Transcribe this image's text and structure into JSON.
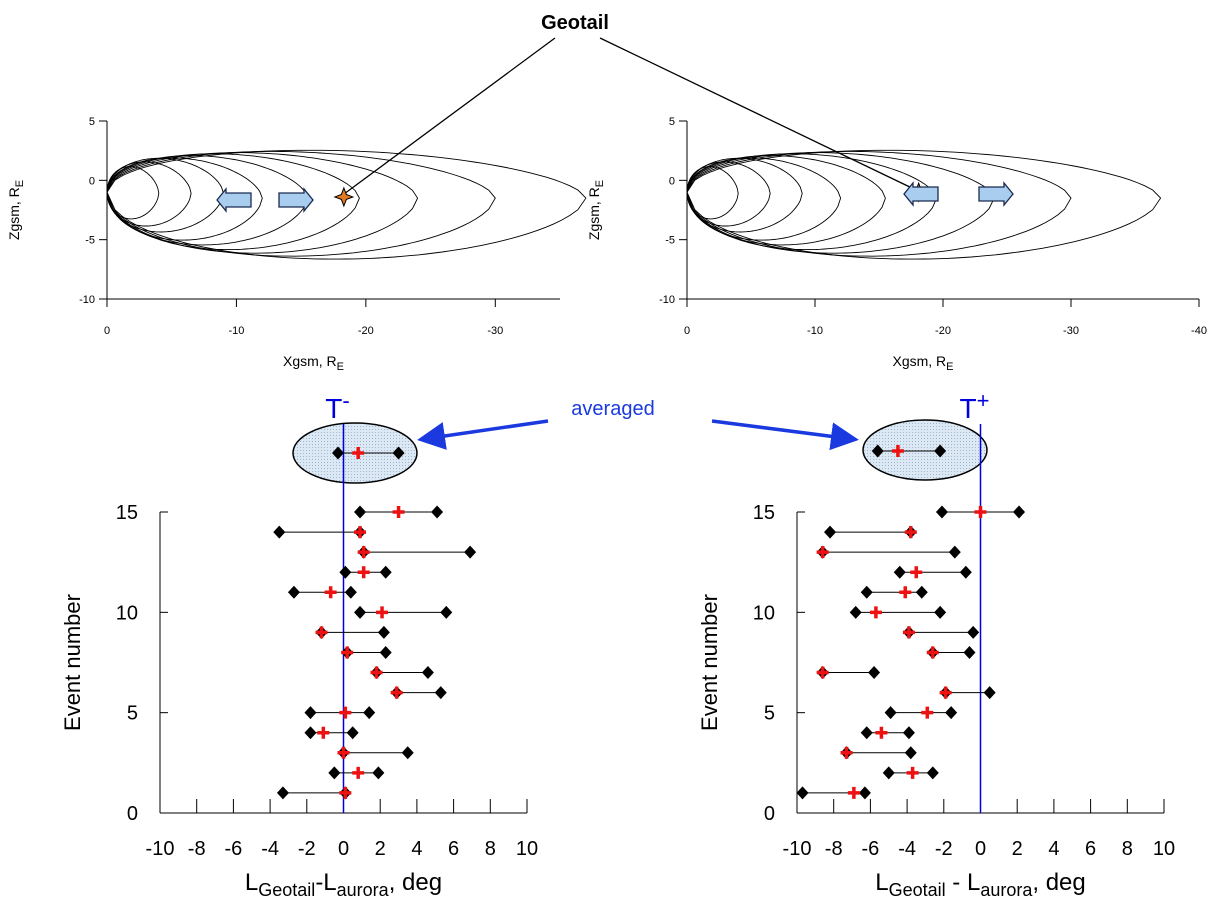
{
  "chart_data": [
    {
      "type": "field-lines",
      "annotation": "Geotail",
      "xlabel": "Xgsm, R",
      "xlabel_sub": "E",
      "ylabel": "Zgsm, R",
      "ylabel_sub": "E",
      "xlim": [
        0,
        -35
      ],
      "xticks": [
        0,
        -10,
        -20,
        -30
      ],
      "ylim": [
        -10,
        5
      ],
      "yticks": [
        -10,
        -5,
        0,
        5
      ],
      "spacecraft": {
        "x": -18.3,
        "z": -1.4
      }
    },
    {
      "type": "field-lines",
      "xlabel": "Xgsm, R",
      "xlabel_sub": "E",
      "ylabel": "Zgsm, R",
      "ylabel_sub": "E",
      "xlim": [
        0,
        -40
      ],
      "xticks": [
        0,
        -10,
        -20,
        -30,
        -40
      ],
      "ylim": [
        -10,
        5
      ],
      "yticks": [
        -10,
        -5,
        0,
        5
      ],
      "spacecraft": {
        "x": -18.1,
        "z": -1.0
      }
    },
    {
      "type": "range",
      "marker_label": "T",
      "marker_sup": "-",
      "marker_x": 0,
      "averaged_label": "averaged",
      "ylabel": "Event number",
      "xlabel_parts": [
        {
          "text": "L"
        },
        {
          "text": "Geotail",
          "sub": true
        },
        {
          "text": "-L"
        },
        {
          "text": "aurora",
          "sub": true
        },
        {
          "text": ", deg"
        }
      ],
      "xlim": [
        -10,
        10
      ],
      "xticks": [
        -10,
        -8,
        -6,
        -4,
        -2,
        0,
        2,
        4,
        6,
        8,
        10
      ],
      "ylim": [
        0,
        15
      ],
      "yticks": [
        0,
        5,
        10,
        15
      ],
      "events": [
        1,
        2,
        3,
        4,
        5,
        6,
        7,
        8,
        9,
        10,
        11,
        12,
        13,
        14,
        15
      ],
      "low": [
        -3.3,
        -0.5,
        0,
        -1.8,
        -1.8,
        2.9,
        1.8,
        0.2,
        -1.2,
        0.9,
        -2.7,
        0.1,
        1.1,
        -3.5,
        0.9
      ],
      "high": [
        0.1,
        1.9,
        3.5,
        0.5,
        1.4,
        5.3,
        4.6,
        2.3,
        2.2,
        5.6,
        0.4,
        2.3,
        6.9,
        0.9,
        5.1
      ],
      "mean": [
        0.1,
        0.8,
        0,
        -1.1,
        0.1,
        2.9,
        1.8,
        0.2,
        -1.2,
        2.1,
        -0.7,
        1.1,
        1.1,
        0.9,
        3.0
      ],
      "averaged": {
        "low": -0.3,
        "high": 3.0,
        "mean": 0.8
      },
      "range_color": "#000000",
      "mean_color": "#ee1111",
      "marker_color": "#0000dd"
    },
    {
      "type": "range",
      "marker_label": "T",
      "marker_sup": "+",
      "marker_x": 0,
      "ylabel": "Event number",
      "xlabel_parts": [
        {
          "text": "L"
        },
        {
          "text": "Geotail",
          "sub": true
        },
        {
          "text": " - L"
        },
        {
          "text": "aurora",
          "sub": true
        },
        {
          "text": ", deg"
        }
      ],
      "xlim": [
        -10,
        10
      ],
      "xticks": [
        -10,
        -8,
        -6,
        -4,
        -2,
        0,
        2,
        4,
        6,
        8,
        10
      ],
      "ylim": [
        0,
        15
      ],
      "yticks": [
        0,
        5,
        10,
        15
      ],
      "events": [
        1,
        2,
        3,
        4,
        5,
        6,
        7,
        8,
        9,
        10,
        11,
        12,
        13,
        14,
        15
      ],
      "low": [
        -9.7,
        -5.0,
        -7.3,
        -6.2,
        -4.9,
        -1.9,
        -8.6,
        -2.6,
        -3.9,
        -6.8,
        -6.2,
        -4.4,
        -8.6,
        -8.2,
        -2.1
      ],
      "high": [
        -6.3,
        -2.6,
        -3.8,
        -3.9,
        -1.6,
        0.5,
        -5.8,
        -0.6,
        -0.4,
        -2.2,
        -3.2,
        -0.8,
        -1.4,
        -3.8,
        2.1
      ],
      "mean": [
        -6.9,
        -3.7,
        -7.3,
        -5.4,
        -2.9,
        -1.9,
        -8.6,
        -2.6,
        -3.9,
        -5.7,
        -4.1,
        -3.5,
        -8.6,
        -3.8,
        0
      ],
      "averaged": {
        "low": -5.6,
        "high": -2.2,
        "mean": -4.5
      },
      "range_color": "#000000",
      "mean_color": "#ee1111",
      "marker_color": "#0000dd"
    }
  ]
}
